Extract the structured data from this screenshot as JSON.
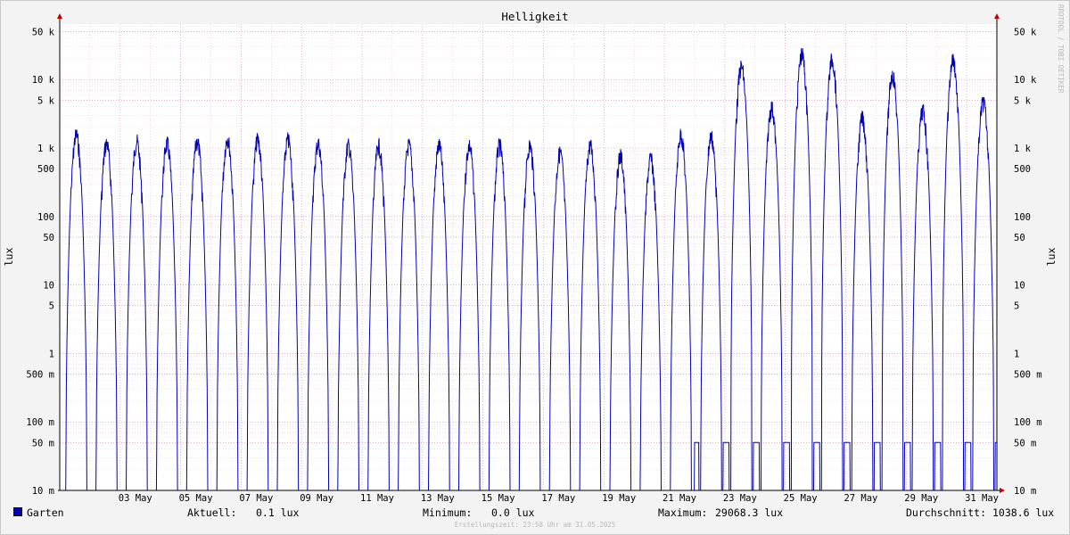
{
  "window": {
    "border_color": "#c0c0c0",
    "background": "#f3f3f3",
    "canvas_background": "#ffffff"
  },
  "watermark": "RRDTOOL / TOBI OETIKER",
  "chart_data": {
    "type": "line",
    "title": "Helligkeit",
    "ylabel": "lux",
    "y_scale": "log",
    "ylim": [
      0.01,
      100000
    ],
    "y_ticks": [
      {
        "value": 50000,
        "label": "50 k"
      },
      {
        "value": 10000,
        "label": "10 k"
      },
      {
        "value": 5000,
        "label": "5 k"
      },
      {
        "value": 1000,
        "label": "1 k"
      },
      {
        "value": 500,
        "label": "500"
      },
      {
        "value": 100,
        "label": "100"
      },
      {
        "value": 50,
        "label": "50"
      },
      {
        "value": 10,
        "label": "10"
      },
      {
        "value": 5,
        "label": "5"
      },
      {
        "value": 1,
        "label": "1"
      },
      {
        "value": 0.5,
        "label": "500 m"
      },
      {
        "value": 0.1,
        "label": "100 m"
      },
      {
        "value": 0.05,
        "label": "50 m"
      },
      {
        "value": 0.01,
        "label": "10 m"
      }
    ],
    "x_range": [
      "2025-05-01",
      "2025-05-31 23:59"
    ],
    "x_ticks": [
      "03 May",
      "05 May",
      "07 May",
      "09 May",
      "11 May",
      "13 May",
      "15 May",
      "17 May",
      "19 May",
      "21 May",
      "23 May",
      "25 May",
      "27 May",
      "29 May",
      "31 May"
    ],
    "grid": true,
    "colors": {
      "series": "#0000b4",
      "minor_grid": "#e8b8c8",
      "major_grid": "#d07090",
      "axis": "#c00000"
    },
    "series": [
      {
        "name": "Garten",
        "color": "#0000b4",
        "daily_peaks_lux": [
          2000,
          1500,
          1600,
          1500,
          1600,
          1800,
          1700,
          1700,
          1500,
          1400,
          1400,
          1400,
          1400,
          1400,
          1400,
          1400,
          1100,
          1400,
          1000,
          900,
          2000,
          1900,
          20000,
          5000,
          30000,
          25000,
          3500,
          15000,
          4500,
          25000,
          6000
        ],
        "night_floor_lux": 0.05
      }
    ]
  },
  "legend": {
    "series_label": "Garten",
    "current_label": "Aktuell:",
    "current_value": "0.1 lux",
    "min_label": "Minimum:",
    "min_value": "0.0 lux",
    "max_label": "Maximum:",
    "max_value": "29068.3 lux",
    "avg_label": "Durchschnitt:",
    "avg_value": "1038.6 lux"
  },
  "footer": "Erstellungszeit: 23:58 Uhr am 31.05.2025"
}
